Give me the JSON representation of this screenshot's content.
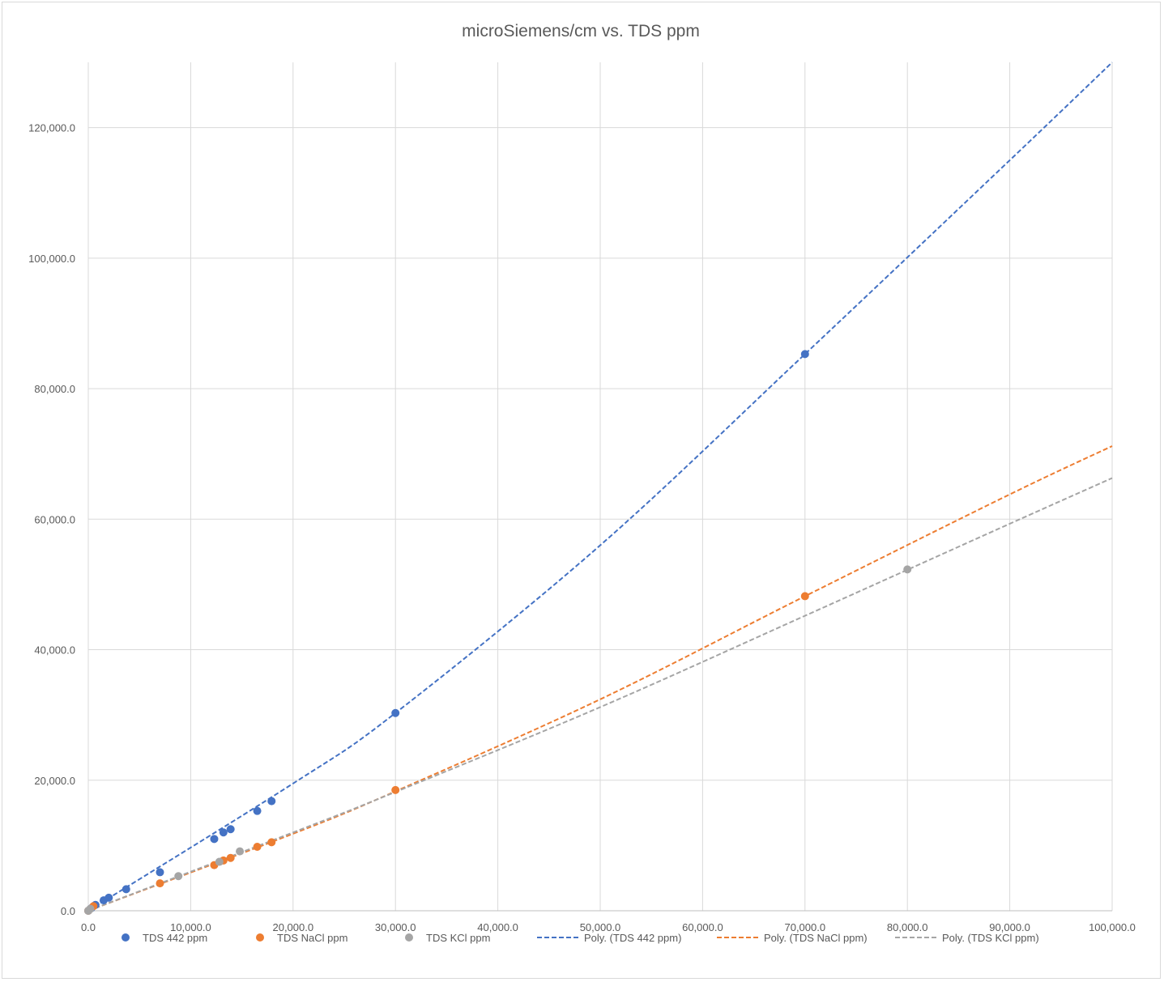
{
  "chart_data": {
    "type": "scatter",
    "title": "microSiemens/cm vs. TDS ppm",
    "xlabel": "",
    "ylabel": "",
    "xlim": [
      0,
      100000
    ],
    "ylim": [
      0,
      130000
    ],
    "grid": true,
    "legend_position": "bottom",
    "x_ticks": [
      "0.0",
      "10,000.0",
      "20,000.0",
      "30,000.0",
      "40,000.0",
      "50,000.0",
      "60,000.0",
      "70,000.0",
      "80,000.0",
      "90,000.0",
      "100,000.0"
    ],
    "y_ticks": [
      "0.0",
      "20,000.0",
      "40,000.0",
      "60,000.0",
      "80,000.0",
      "100,000.0",
      "120,000.0"
    ],
    "x_tick_values": [
      0,
      10000,
      20000,
      30000,
      40000,
      50000,
      60000,
      70000,
      80000,
      90000,
      100000
    ],
    "y_tick_values": [
      0,
      20000,
      40000,
      60000,
      80000,
      100000,
      120000
    ],
    "series": [
      {
        "name": "TDS 442 ppm",
        "color": "#4472c4",
        "points": [
          [
            0,
            0
          ],
          [
            300,
            400
          ],
          [
            700,
            900
          ],
          [
            1500,
            1600
          ],
          [
            2000,
            2000
          ],
          [
            3700,
            3300
          ],
          [
            7000,
            5900
          ],
          [
            12300,
            11000
          ],
          [
            13200,
            12000
          ],
          [
            13900,
            12500
          ],
          [
            16500,
            15300
          ],
          [
            17900,
            16800
          ],
          [
            30000,
            30300
          ],
          [
            70000,
            85300
          ]
        ]
      },
      {
        "name": "TDS NaCl ppm",
        "color": "#ed7d31",
        "points": [
          [
            0,
            0
          ],
          [
            500,
            700
          ],
          [
            7000,
            4200
          ],
          [
            12300,
            7000
          ],
          [
            13200,
            7700
          ],
          [
            13900,
            8100
          ],
          [
            16500,
            9800
          ],
          [
            17900,
            10500
          ],
          [
            30000,
            18500
          ],
          [
            70000,
            48200
          ]
        ]
      },
      {
        "name": "TDS KCl ppm",
        "color": "#a5a5a5",
        "points": [
          [
            0,
            0
          ],
          [
            200,
            300
          ],
          [
            8800,
            5300
          ],
          [
            12800,
            7500
          ],
          [
            14800,
            9100
          ],
          [
            80000,
            52300
          ]
        ]
      }
    ],
    "trendlines": [
      {
        "name": "Poly. (TDS 442 ppm)",
        "color": "#4472c4",
        "type": "polynomial",
        "points": [
          [
            0,
            0
          ],
          [
            20000,
            19500
          ],
          [
            30000,
            30300
          ],
          [
            50000,
            56000
          ],
          [
            70000,
            85300
          ],
          [
            90000,
            115000
          ],
          [
            100000,
            130000
          ]
        ]
      },
      {
        "name": "Poly. (TDS NaCl ppm)",
        "color": "#ed7d31",
        "type": "polynomial",
        "points": [
          [
            0,
            0
          ],
          [
            20000,
            11800
          ],
          [
            30000,
            18300
          ],
          [
            50000,
            32400
          ],
          [
            70000,
            48200
          ],
          [
            90000,
            63800
          ],
          [
            100000,
            71200
          ]
        ]
      },
      {
        "name": "Poly. (TDS KCl ppm)",
        "color": "#a5a5a5",
        "type": "polynomial",
        "points": [
          [
            0,
            0
          ],
          [
            20000,
            12000
          ],
          [
            30000,
            18200
          ],
          [
            50000,
            31200
          ],
          [
            70000,
            45200
          ],
          [
            90000,
            59300
          ],
          [
            100000,
            66300
          ]
        ]
      }
    ]
  }
}
